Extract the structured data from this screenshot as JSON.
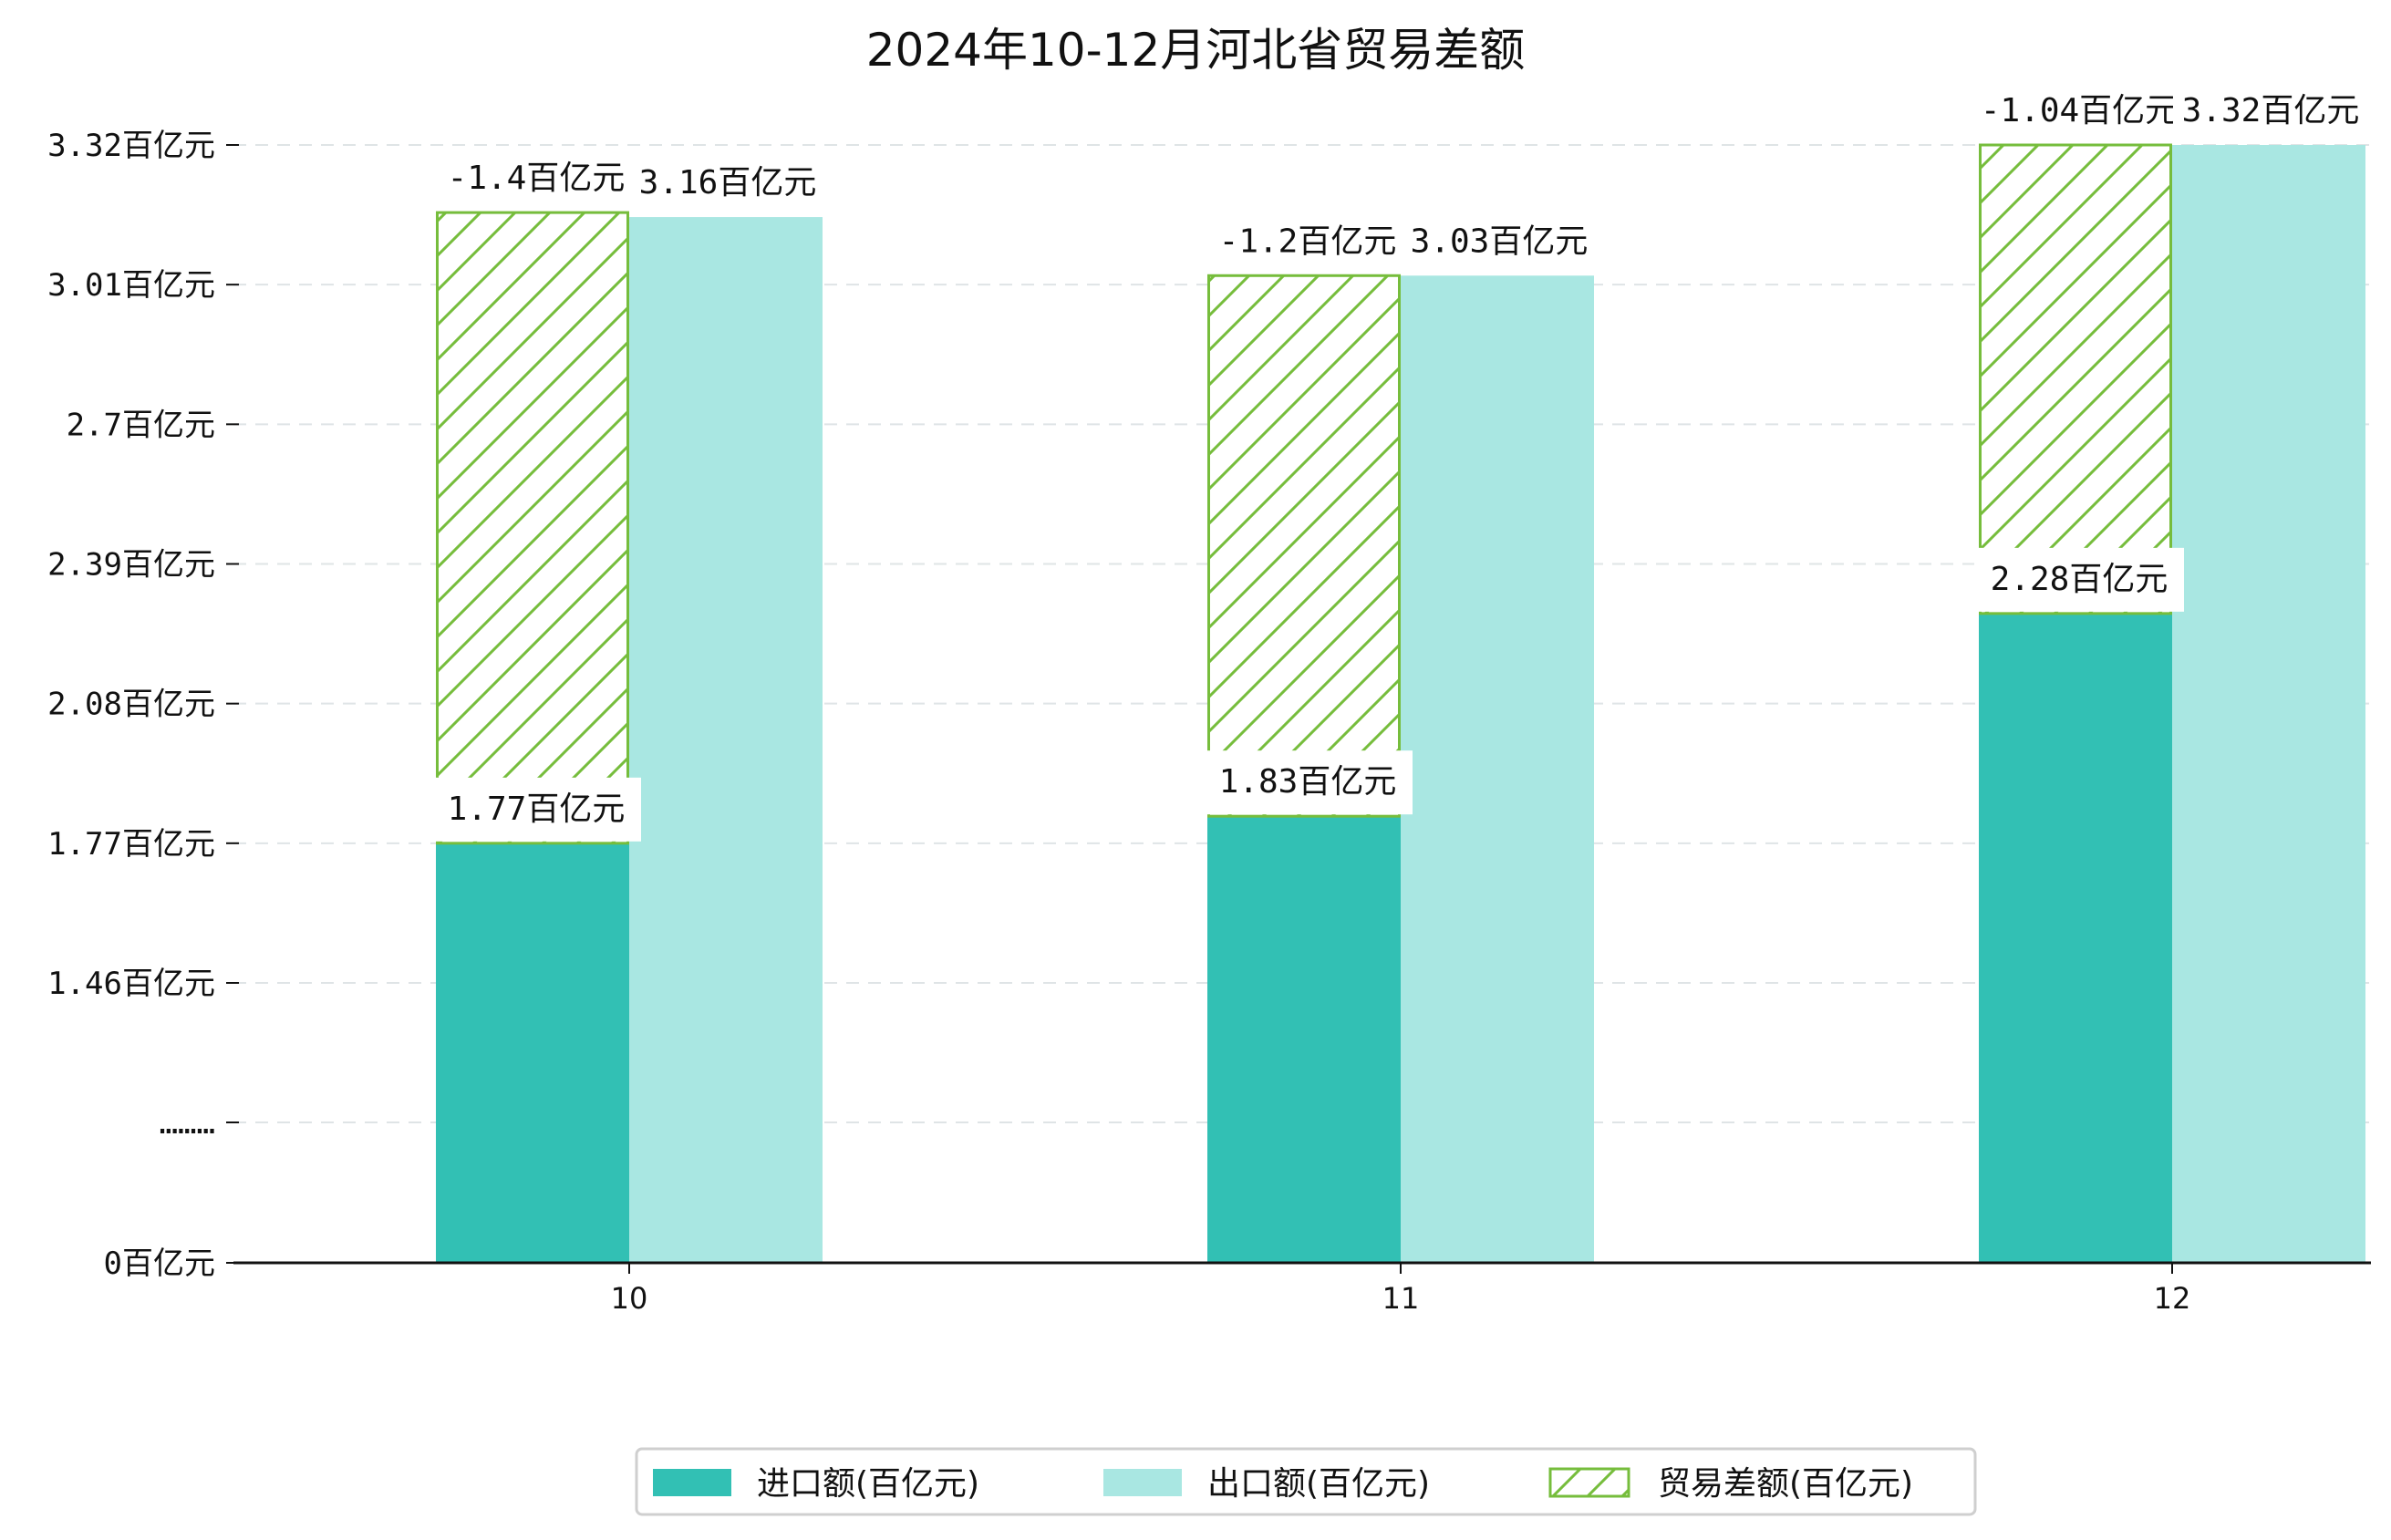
{
  "chart_data": {
    "type": "bar",
    "title": "2024年10-12月河北省贸易差额",
    "xlabel": "",
    "ylabel": "",
    "categories": [
      "10",
      "11",
      "12"
    ],
    "series": [
      {
        "name": "进口额(百亿元)",
        "values": [
          1.77,
          1.83,
          2.28
        ],
        "color": "#32c0b4"
      },
      {
        "name": "出口额(百亿元)",
        "values": [
          3.16,
          3.03,
          3.32
        ],
        "color": "#a9e7e2"
      },
      {
        "name": "贸易差额(百亿元)",
        "values": [
          -1.4,
          -1.2,
          -1.04
        ],
        "color": "#76bd3c",
        "style": "hatched",
        "stacked_on": "进口额(百亿元)"
      }
    ],
    "data_labels": {
      "import": [
        "1.77百亿元",
        "1.83百亿元",
        "2.28百亿元"
      ],
      "export": [
        "3.16百亿元",
        "3.03百亿元",
        "3.32百亿元"
      ],
      "balance": [
        "-1.4百亿元",
        "-1.2百亿元",
        "-1.04百亿元"
      ]
    },
    "y_ticks": [
      {
        "value": 0,
        "label": "0百亿元"
      },
      {
        "value": 1.15,
        "label": "………"
      },
      {
        "value": 1.46,
        "label": "1.46百亿元"
      },
      {
        "value": 1.77,
        "label": "1.77百亿元"
      },
      {
        "value": 2.08,
        "label": "2.08百亿元"
      },
      {
        "value": 2.39,
        "label": "2.39百亿元"
      },
      {
        "value": 2.7,
        "label": "2.7百亿元"
      },
      {
        "value": 3.01,
        "label": "3.01百亿元"
      },
      {
        "value": 3.32,
        "label": "3.32百亿元"
      }
    ],
    "y_axis_break": true,
    "grid": "horizontal-dashed",
    "legend_position": "bottom-center"
  }
}
